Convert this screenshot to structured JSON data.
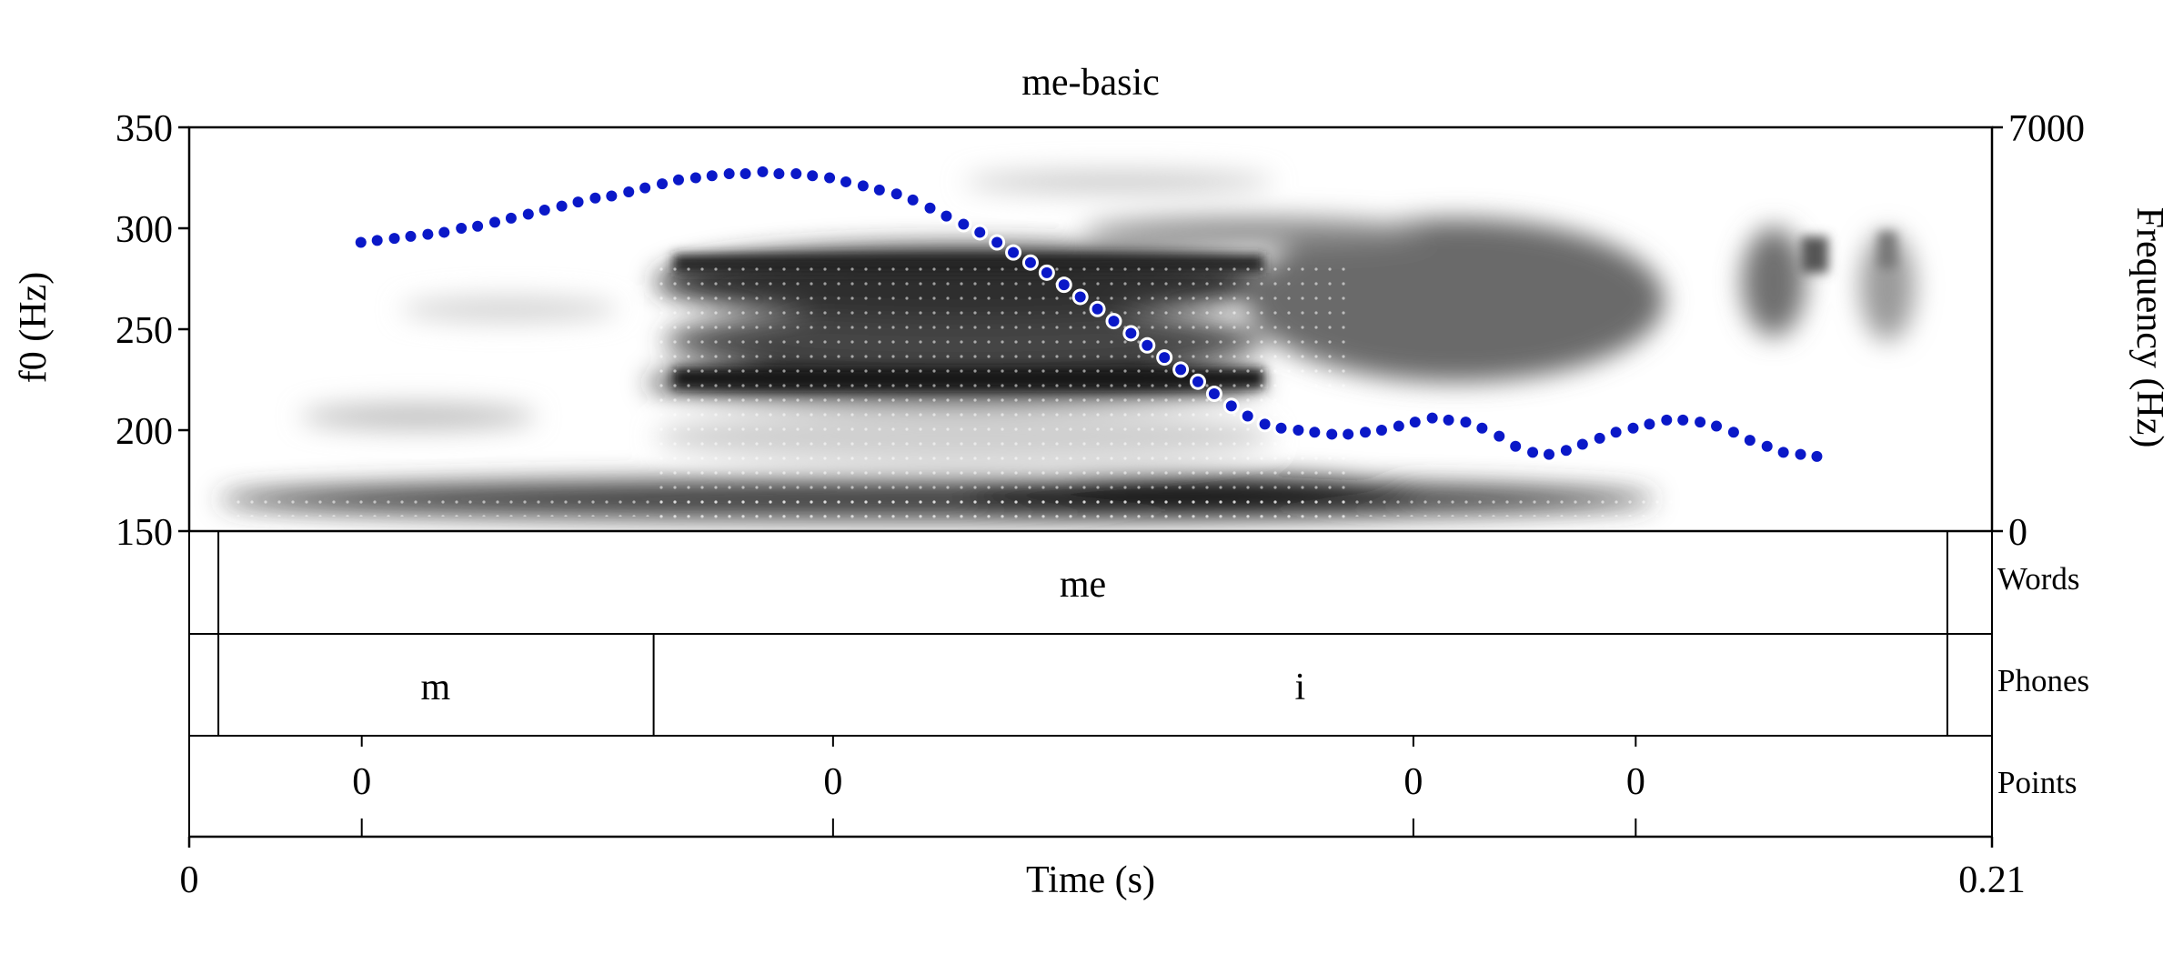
{
  "chart_data": {
    "type": "line",
    "title": "me-basic",
    "xlabel": "Time (s)",
    "ylabel_left": "f0 (Hz)",
    "ylabel_right": "Frequency (Hz)",
    "xlim": [
      0,
      0.21
    ],
    "ylim_left": [
      150,
      350
    ],
    "ylim_right": [
      0,
      7000
    ],
    "x_ticks": [
      "0",
      "0.21"
    ],
    "y_ticks_left": [
      150,
      200,
      250,
      300,
      350
    ],
    "y_ticks_right": [
      0,
      7000
    ],
    "grid": false,
    "series": [
      {
        "color": "#0a18c8",
        "x": [
          0.02,
          0.0219,
          0.0239,
          0.0258,
          0.0278,
          0.0297,
          0.0317,
          0.0336,
          0.0356,
          0.0375,
          0.0395,
          0.0414,
          0.0434,
          0.0453,
          0.0473,
          0.0492,
          0.0512,
          0.0531,
          0.0551,
          0.057,
          0.059,
          0.0609,
          0.0629,
          0.0648,
          0.0668,
          0.0687,
          0.0707,
          0.0726,
          0.0746,
          0.0765,
          0.0785,
          0.0804,
          0.0824,
          0.0843,
          0.0863,
          0.0882,
          0.0902,
          0.0921,
          0.0941,
          0.096,
          0.098,
          0.0999,
          0.1019,
          0.1038,
          0.1058,
          0.1077,
          0.1097,
          0.1116,
          0.1136,
          0.1155,
          0.1175,
          0.1194,
          0.1214,
          0.1233,
          0.1253,
          0.1272,
          0.1292,
          0.1311,
          0.1331,
          0.135,
          0.137,
          0.1389,
          0.1409,
          0.1428,
          0.1448,
          0.1467,
          0.1487,
          0.1506,
          0.1526,
          0.1545,
          0.1565,
          0.1584,
          0.1604,
          0.1623,
          0.1643,
          0.1662,
          0.1682,
          0.1701,
          0.1721,
          0.174,
          0.176,
          0.1779,
          0.1799,
          0.1818,
          0.1838,
          0.1857,
          0.1877,
          0.1896
        ],
        "y": [
          293,
          294,
          295,
          296,
          297,
          298,
          300,
          301,
          303,
          305,
          307,
          309,
          311,
          313,
          315,
          316,
          318,
          320,
          322,
          324,
          325,
          326,
          327,
          327,
          328,
          327,
          327,
          326,
          325,
          323,
          321,
          319,
          317,
          314,
          310,
          306,
          302,
          298,
          293,
          288,
          283,
          278,
          272,
          266,
          260,
          254,
          248,
          242,
          236,
          230,
          224,
          218,
          212,
          207,
          203,
          201,
          200,
          199,
          198,
          198,
          199,
          200,
          202,
          204,
          206,
          205,
          204,
          201,
          197,
          192,
          189,
          188,
          190,
          193,
          196,
          199,
          201,
          203,
          205,
          205,
          204,
          202,
          199,
          195,
          192,
          189,
          188,
          187
        ]
      }
    ],
    "tiers": [
      {
        "name": "Words",
        "type": "interval",
        "boundaries": [
          0.0034,
          0.2048
        ],
        "labels": [
          {
            "text": "me",
            "time": 0.1041
          }
        ]
      },
      {
        "name": "Phones",
        "type": "interval",
        "boundaries": [
          0.0034,
          0.0541,
          0.2048
        ],
        "labels": [
          {
            "text": "m",
            "time": 0.0287
          },
          {
            "text": "i",
            "time": 0.1294
          }
        ]
      },
      {
        "name": "Points",
        "type": "point",
        "points": [
          {
            "time": 0.0201,
            "text": "0"
          },
          {
            "time": 0.075,
            "text": "0"
          },
          {
            "time": 0.1426,
            "text": "0"
          },
          {
            "time": 0.1685,
            "text": "0"
          }
        ]
      }
    ]
  }
}
